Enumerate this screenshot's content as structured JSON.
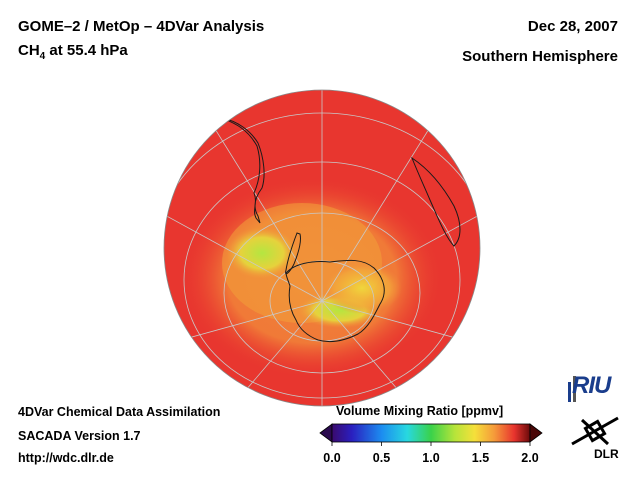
{
  "header": {
    "title_line1": "GOME–2 / MetOp – 4DVar Analysis",
    "species": "CH",
    "species_sub": "4",
    "level": " at 55.4 hPa",
    "date": "Dec 28, 2007",
    "region": "Southern Hemisphere"
  },
  "footer": {
    "line1": "4DVar Chemical Data Assimilation",
    "line2": "SACADA Version 1.7",
    "line3": "http://wdc.dlr.de"
  },
  "colorbar": {
    "label": "Volume Mixing Ratio [ppmv]",
    "ticks": [
      "0.0",
      "0.5",
      "1.0",
      "1.5",
      "2.0"
    ],
    "range": [
      0.0,
      2.0
    ]
  },
  "map": {
    "projection": "orthographic, south polar",
    "quantity": "CH4 volume mixing ratio",
    "typical_value_ppmv": 1.75,
    "polar_minimum_ppmv": 1.2
  },
  "logos": {
    "riu": "RIU",
    "dlr": "DLR"
  },
  "colors": {
    "high": "#e8312e",
    "mid": "#f59a3c",
    "low": "#c8e83a",
    "coast": "#000000"
  }
}
